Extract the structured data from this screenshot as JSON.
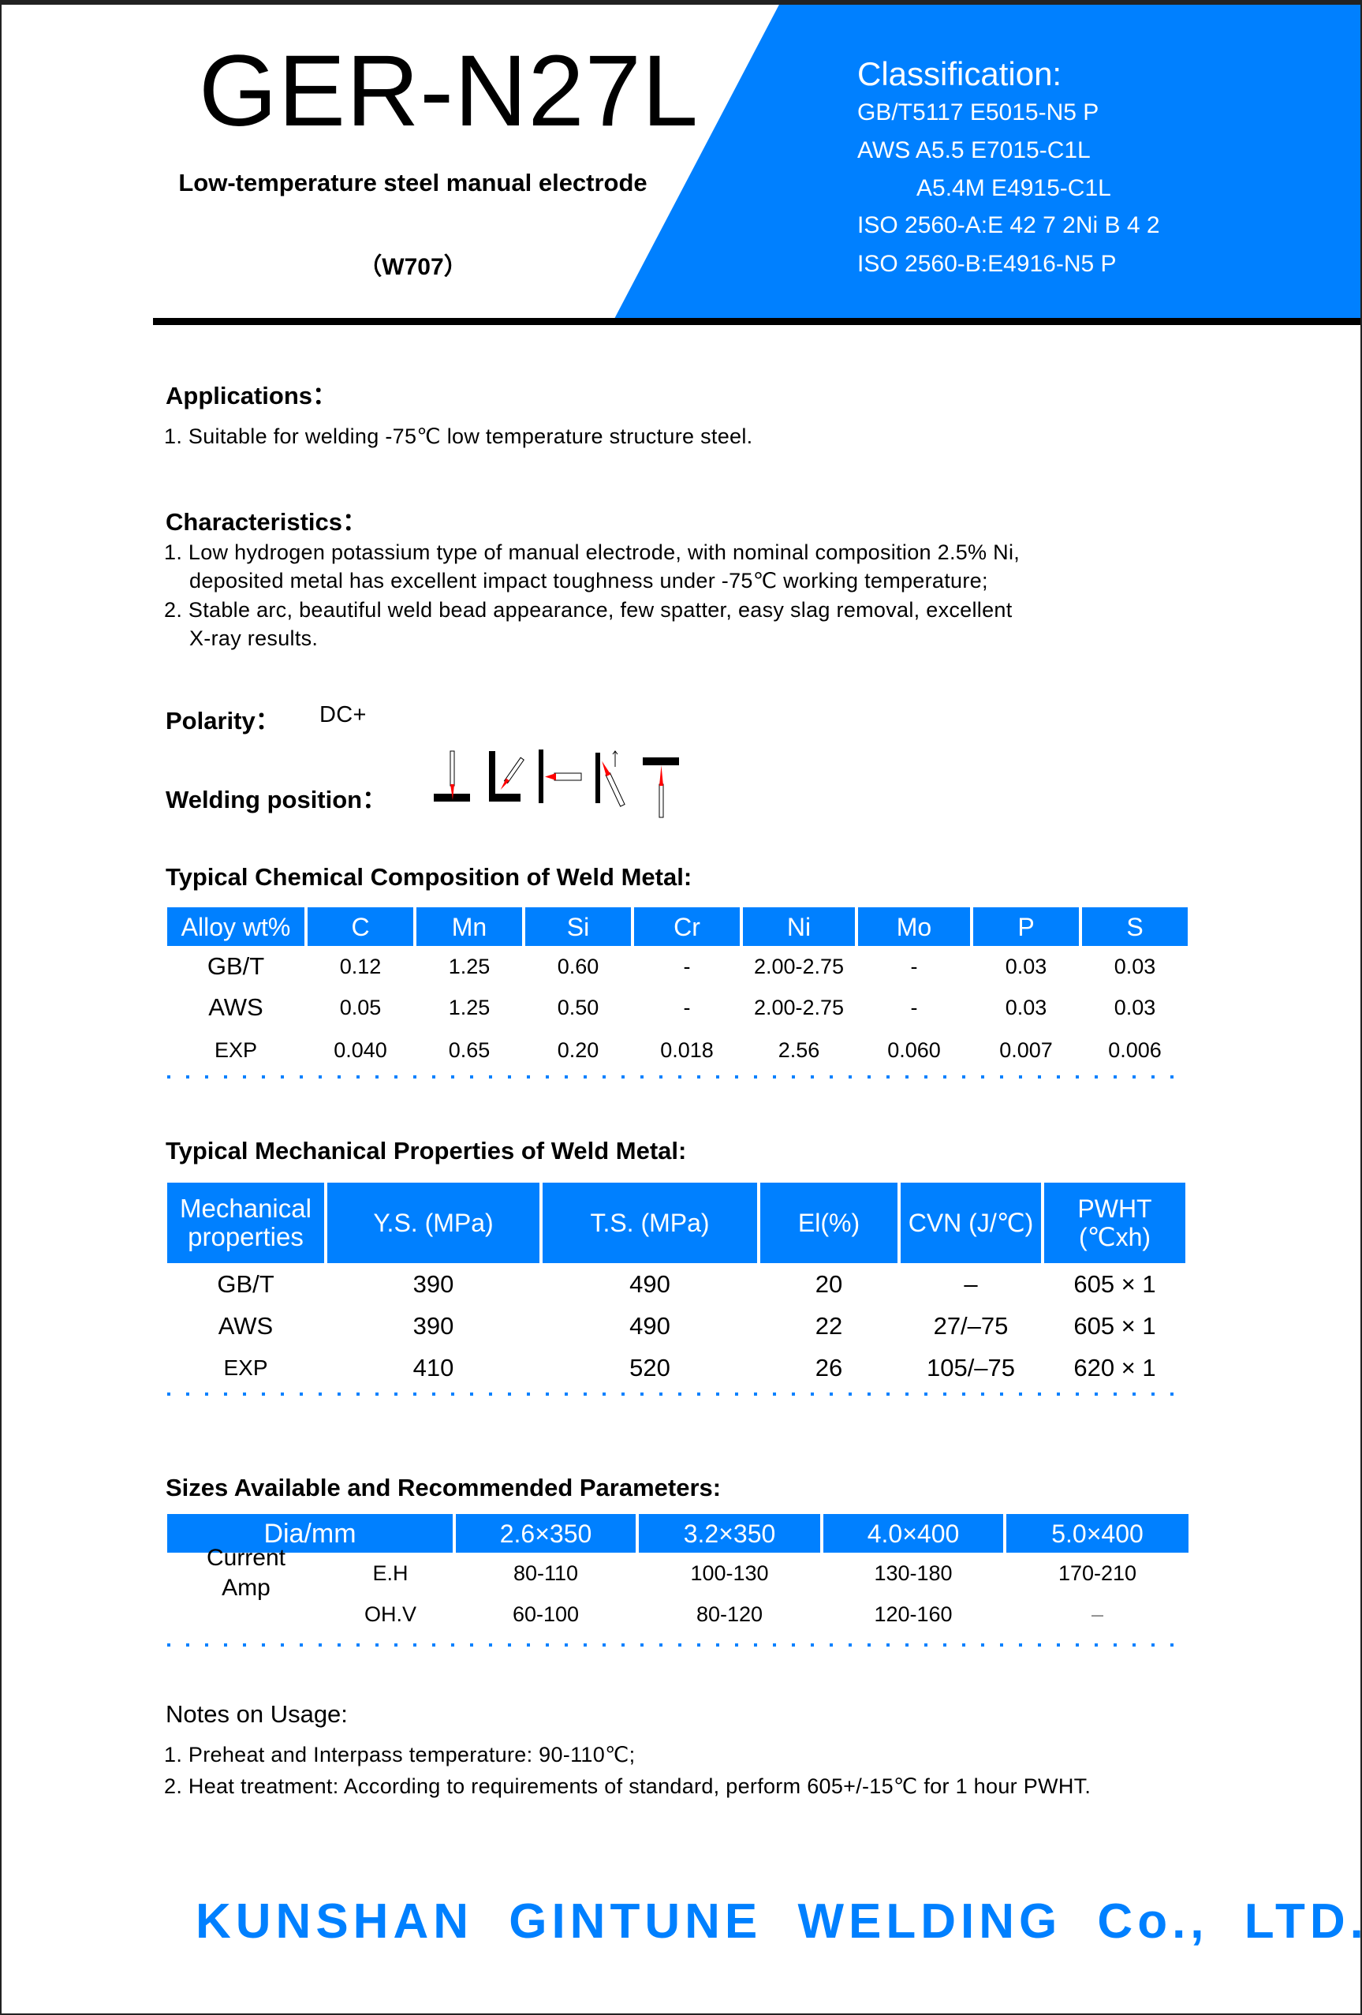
{
  "colors": {
    "brand_blue": "#0080ff",
    "electrode_tip": "#ff0000"
  },
  "header": {
    "product": "GER-N27L",
    "description": "Low-temperature steel manual electrode",
    "code": "（W707）",
    "classification_title": "Classification:",
    "classification": [
      "GB/T5117   E5015-N5 P",
      "AWS A5.5   E7015-C1L",
      "A5.4M E4915-C1L",
      "ISO 2560-A:E 42 7 2Ni B 4 2",
      "ISO 2560-B:E4916-N5 P"
    ]
  },
  "applications": {
    "title": "Applications：",
    "items": [
      "1. Suitable for welding -75℃ low temperature structure steel."
    ]
  },
  "characteristics": {
    "title": "Characteristics：",
    "lines": [
      "1. Low hydrogen potassium type of manual electrode, with nominal composition 2.5% Ni,",
      "deposited metal has excellent impact toughness under -75℃  working temperature;",
      "2. Stable arc, beautiful weld bead appearance, few spatter, easy slag removal, excellent",
      "X-ray results."
    ]
  },
  "polarity": {
    "label": "Polarity：",
    "value": "DC+"
  },
  "welding_position": {
    "label": "Welding position：",
    "icons": [
      "flat-position-icon",
      "horizontal-fillet-icon",
      "horizontal-position-icon",
      "vertical-up-icon",
      "overhead-position-icon"
    ]
  },
  "chemical": {
    "title": "Typical Chemical Composition of Weld Metal:",
    "headers": [
      "Alloy wt%",
      "C",
      "Mn",
      "Si",
      "Cr",
      "Ni",
      "Mo",
      "P",
      "S"
    ],
    "rows": [
      [
        "GB/T",
        "0.12",
        "1.25",
        "0.60",
        "-",
        "2.00-2.75",
        "-",
        "0.03",
        "0.03"
      ],
      [
        "AWS",
        "0.05",
        "1.25",
        "0.50",
        "-",
        "2.00-2.75",
        "-",
        "0.03",
        "0.03"
      ],
      [
        "EXP",
        "0.040",
        "0.65",
        "0.20",
        "0.018",
        "2.56",
        "0.060",
        "0.007",
        "0.006"
      ]
    ]
  },
  "mechanical": {
    "title": "Typical Mechanical Properties of Weld Metal:",
    "headers": [
      "Mechanical properties",
      "Y.S. (MPa)",
      "T.S. (MPa)",
      "El(%)",
      "CVN (J/℃)",
      "PWHT (℃xh)"
    ],
    "rows": [
      [
        "GB/T",
        "390",
        "490",
        "20",
        "–",
        "605 × 1"
      ],
      [
        "AWS",
        "390",
        "490",
        "22",
        "27/–75",
        "605 × 1"
      ],
      [
        "EXP",
        "410",
        "520",
        "26",
        "105/–75",
        "620 × 1"
      ]
    ]
  },
  "sizes": {
    "title": "Sizes Available and Recommended Parameters:",
    "headers": [
      "Dia/mm",
      "2.6×350",
      "3.2×350",
      "4.0×400",
      "5.0×400"
    ],
    "row_group": "Current Amp",
    "rows": [
      [
        "E.H",
        "80-110",
        "100-130",
        "130-180",
        "170-210"
      ],
      [
        "OH.V",
        "60-100",
        "80-120",
        "120-160",
        "–"
      ]
    ]
  },
  "notes": {
    "title": "Notes on Usage:",
    "items": [
      "1.  Preheat and Interpass temperature: 90-110℃;",
      "2.  Heat treatment: According to requirements of standard, perform 605+/-15℃ for 1 hour PWHT."
    ]
  },
  "footer": {
    "company": "KUNSHAN GINTUNE WELDING Co., LTD."
  }
}
